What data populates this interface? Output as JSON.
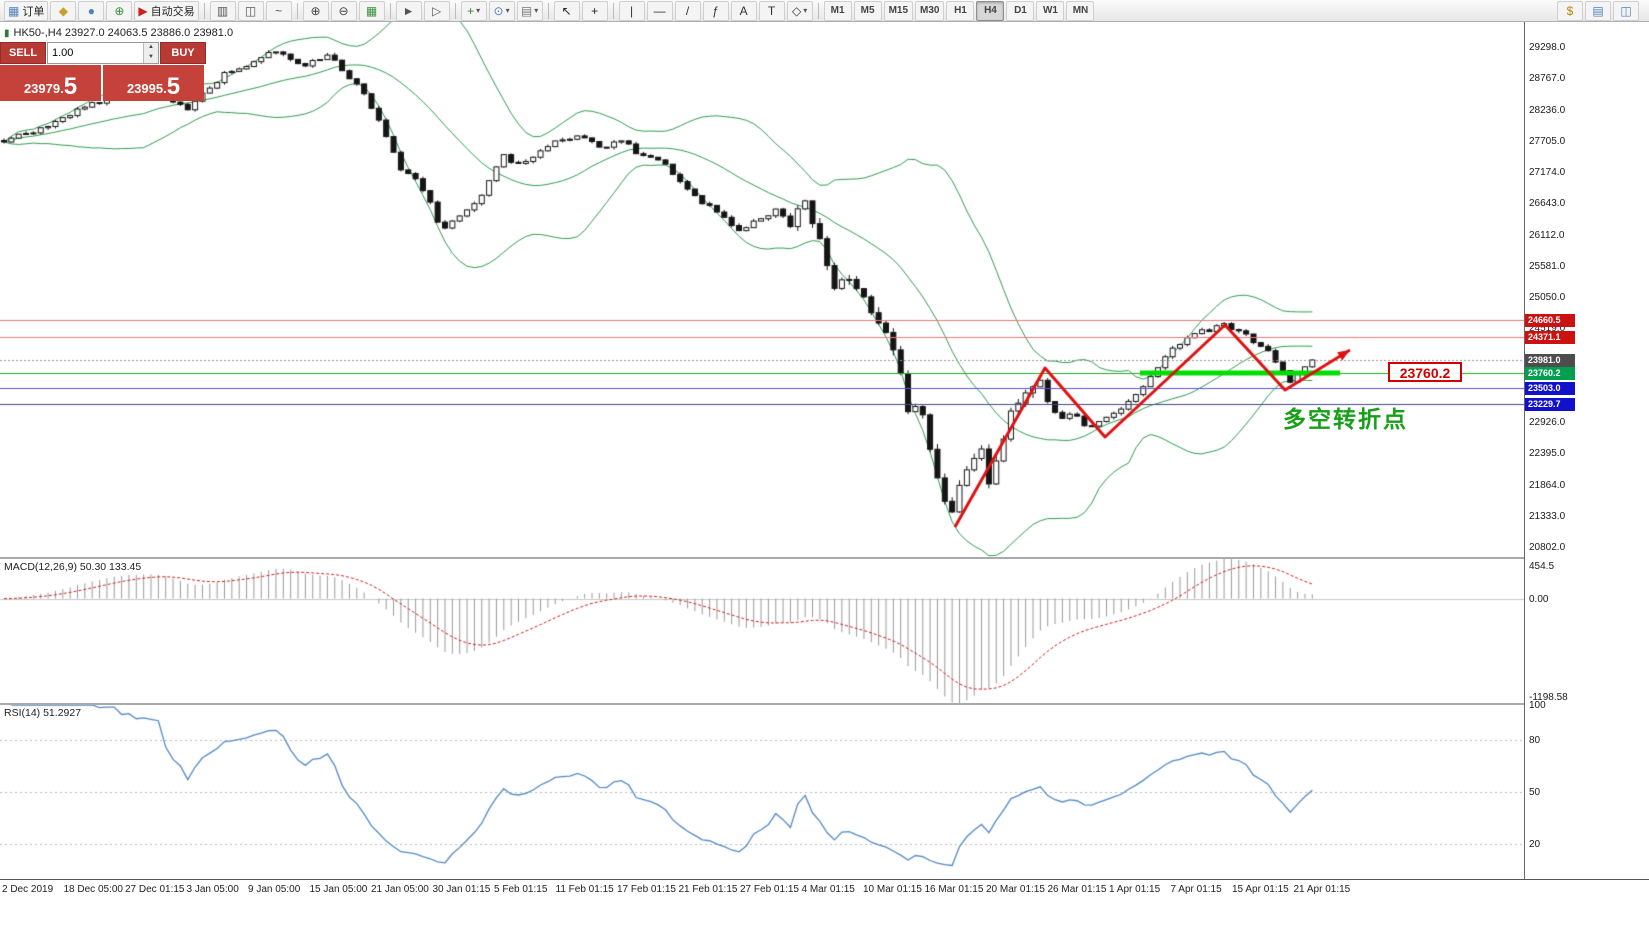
{
  "toolbar": {
    "groups": [
      {
        "items": [
          {
            "name": "new-order-button",
            "icon_name": "new-order-icon",
            "glyph": "▦",
            "glyph_color": "#4f81bd",
            "label": "订单"
          },
          {
            "name": "hammer-button",
            "icon_name": "hammer-icon",
            "glyph": "◆",
            "glyph_color": "#c8a028"
          },
          {
            "name": "profile-button",
            "icon_name": "profile-icon",
            "glyph": "●",
            "glyph_color": "#4f81bd"
          },
          {
            "name": "globe-button",
            "icon_name": "globe-icon",
            "glyph": "⊕",
            "glyph_color": "#3a8f3a"
          },
          {
            "name": "autotrading-button",
            "icon_name": "autotrading-play-icon",
            "glyph": "▶",
            "glyph_color": "#cc2222",
            "label": "自动交易"
          }
        ]
      },
      {
        "items": [
          {
            "name": "bar-chart-button",
            "icon_name": "bar-chart-icon",
            "glyph": "▥",
            "glyph_color": "#555555"
          },
          {
            "name": "candlestick-chart-button",
            "icon_name": "candlestick-chart-icon",
            "glyph": "◫",
            "glyph_color": "#555555"
          },
          {
            "name": "line-chart-button",
            "icon_name": "line-chart-icon",
            "glyph": "~",
            "glyph_color": "#555555"
          }
        ]
      },
      {
        "items": [
          {
            "name": "zoom-in-button",
            "icon_name": "zoom-in-icon",
            "glyph": "⊕",
            "glyph_color": "#444444"
          },
          {
            "name": "zoom-out-button",
            "icon_name": "zoom-out-icon",
            "glyph": "⊖",
            "glyph_color": "#444444"
          },
          {
            "name": "tile-windows-button",
            "icon_name": "tile-windows-icon",
            "glyph": "▦",
            "glyph_color": "#3a8f3a"
          }
        ]
      },
      {
        "items": [
          {
            "name": "autoscroll-button",
            "icon_name": "autoscroll-icon",
            "glyph": "►",
            "glyph_color": "#555555"
          },
          {
            "name": "chart-shift-button",
            "icon_name": "chart-shift-icon",
            "glyph": "▷",
            "glyph_color": "#555555"
          }
        ]
      },
      {
        "items": [
          {
            "name": "new-chart-button",
            "icon_name": "new-chart-icon",
            "glyph": "+",
            "glyph_color": "#2e8b2e",
            "dropdown": true
          },
          {
            "name": "period-button",
            "icon_name": "clock-icon",
            "glyph": "⊙",
            "glyph_color": "#4f81bd",
            "dropdown": true
          },
          {
            "name": "template-button",
            "icon_name": "template-icon",
            "glyph": "▤",
            "glyph_color": "#777777",
            "dropdown": true
          }
        ]
      },
      {
        "items": [
          {
            "name": "cursor-button",
            "icon_name": "cursor-icon",
            "glyph": "↖",
            "glyph_color": "#222222"
          },
          {
            "name": "crosshair-button",
            "icon_name": "crosshair-icon",
            "glyph": "+",
            "glyph_color": "#222222"
          }
        ]
      },
      {
        "items": [
          {
            "name": "vertical-line-button",
            "icon_name": "vertical-line-icon",
            "glyph": "|",
            "glyph_color": "#333333"
          },
          {
            "name": "horizontal-line-button",
            "icon_name": "horizontal-line-icon",
            "glyph": "—",
            "glyph_color": "#333333"
          },
          {
            "name": "trendline-button",
            "icon_name": "trendline-icon",
            "glyph": "/",
            "glyph_color": "#333333"
          },
          {
            "name": "fibonacci-button",
            "icon_name": "fibonacci-icon",
            "glyph": "ƒ",
            "glyph_color": "#333333"
          },
          {
            "name": "text-button",
            "icon_name": "text-icon",
            "glyph": "A",
            "glyph_color": "#333333"
          },
          {
            "name": "label-button",
            "icon_name": "label-icon",
            "glyph": "T",
            "glyph_color": "#333333"
          },
          {
            "name": "shapes-button",
            "icon_name": "shapes-icon",
            "glyph": "◇",
            "glyph_color": "#333333",
            "dropdown": true
          }
        ]
      }
    ],
    "timeframes": [
      {
        "label": "M1"
      },
      {
        "label": "M5"
      },
      {
        "label": "M15"
      },
      {
        "label": "M30"
      },
      {
        "label": "H1"
      },
      {
        "label": "H4",
        "active": true
      },
      {
        "label": "D1"
      },
      {
        "label": "W1"
      },
      {
        "label": "MN"
      }
    ],
    "right_items": [
      {
        "name": "symbol-search-button",
        "icon_name": "symbol-search-icon",
        "glyph": "$",
        "glyph_color": "#b8860b"
      },
      {
        "name": "market-watch-button",
        "icon_name": "market-watch-icon",
        "glyph": "▤",
        "glyph_color": "#4f81bd"
      },
      {
        "name": "window-layout-button",
        "icon_name": "window-layout-icon",
        "glyph": "◫",
        "glyph_color": "#4f81bd"
      }
    ]
  },
  "chart": {
    "symbol_line": "HK50-,H4  23927.0 24063.5 23886.0 23981.0"
  },
  "trade": {
    "sell_label": "SELL",
    "buy_label": "BUY",
    "volume": "1.00",
    "sell_price_head": "23979.",
    "sell_price_big": "5",
    "buy_price_head": "23995.",
    "buy_price_big": "5"
  },
  "macd": {
    "label": "MACD(12,26,9) 50.30 133.45",
    "scale_max_label": "454.5",
    "scale_zero_label": "0.00",
    "scale_min_label": "-1198.58"
  },
  "rsi": {
    "label": "RSI(14) 51.2927",
    "scale_labels": [
      {
        "label": "100",
        "level": 100
      },
      {
        "label": "80",
        "level": 80
      },
      {
        "label": "50",
        "level": 50
      },
      {
        "label": "20",
        "level": 20
      }
    ]
  },
  "chart_data": {
    "type": "candlestick",
    "symbol": "HK50-",
    "timeframe": "H4",
    "ohlc": {
      "open": 23927.0,
      "high": 24063.5,
      "low": 23886.0,
      "close": 23981.0
    },
    "bid": 23979.5,
    "ask": 23995.5,
    "price_axis": {
      "min": 20634,
      "max": 29724,
      "tick_labels": [
        29298.0,
        28767.0,
        28236.0,
        27705.0,
        27174.0,
        26643.0,
        26112.0,
        25581.0,
        25050.0,
        24519.0,
        22926.0,
        22395.0,
        21864.0,
        21333.0,
        20802.0
      ]
    },
    "n_candles": 179,
    "close_anchors": [
      [
        0,
        27720
      ],
      [
        0.03,
        27920
      ],
      [
        0.057,
        28230
      ],
      [
        0.084,
        28480
      ],
      [
        0.114,
        28560
      ],
      [
        0.141,
        28260
      ],
      [
        0.167,
        28820
      ],
      [
        0.194,
        29080
      ],
      [
        0.205,
        29280
      ],
      [
        0.228,
        28990
      ],
      [
        0.251,
        29160
      ],
      [
        0.262,
        28820
      ],
      [
        0.274,
        28560
      ],
      [
        0.285,
        28140
      ],
      [
        0.304,
        27210
      ],
      [
        0.319,
        26950
      ],
      [
        0.335,
        26190
      ],
      [
        0.35,
        26440
      ],
      [
        0.365,
        26780
      ],
      [
        0.38,
        27460
      ],
      [
        0.395,
        27290
      ],
      [
        0.411,
        27550
      ],
      [
        0.426,
        27720
      ],
      [
        0.441,
        27800
      ],
      [
        0.456,
        27550
      ],
      [
        0.471,
        27720
      ],
      [
        0.487,
        27460
      ],
      [
        0.502,
        27380
      ],
      [
        0.517,
        27040
      ],
      [
        0.532,
        26700
      ],
      [
        0.548,
        26440
      ],
      [
        0.563,
        26190
      ],
      [
        0.578,
        26360
      ],
      [
        0.589,
        26530
      ],
      [
        0.601,
        26280
      ],
      [
        0.612,
        26700
      ],
      [
        0.624,
        26020
      ],
      [
        0.635,
        25170
      ],
      [
        0.646,
        25420
      ],
      [
        0.658,
        25000
      ],
      [
        0.669,
        24660
      ],
      [
        0.681,
        24150
      ],
      [
        0.692,
        22960
      ],
      [
        0.7,
        23300
      ],
      [
        0.707,
        22620
      ],
      [
        0.715,
        21940
      ],
      [
        0.722,
        21260
      ],
      [
        0.73,
        21770
      ],
      [
        0.738,
        22110
      ],
      [
        0.745,
        22620
      ],
      [
        0.753,
        21770
      ],
      [
        0.76,
        22450
      ],
      [
        0.768,
        22960
      ],
      [
        0.776,
        23300
      ],
      [
        0.783,
        23470
      ],
      [
        0.791,
        23810
      ],
      [
        0.798,
        23300
      ],
      [
        0.806,
        22960
      ],
      [
        0.817,
        23130
      ],
      [
        0.829,
        22790
      ],
      [
        0.84,
        22960
      ],
      [
        0.852,
        23130
      ],
      [
        0.863,
        23300
      ],
      [
        0.875,
        23640
      ],
      [
        0.886,
        23980
      ],
      [
        0.897,
        24230
      ],
      [
        0.909,
        24400
      ],
      [
        0.92,
        24490
      ],
      [
        0.932,
        24570
      ],
      [
        0.943,
        24490
      ],
      [
        0.954,
        24320
      ],
      [
        0.966,
        24150
      ],
      [
        0.977,
        23810
      ],
      [
        0.985,
        23560
      ],
      [
        0.992,
        23810
      ],
      [
        0.996,
        23900
      ],
      [
        1,
        23981
      ]
    ],
    "indicators": {
      "bollinger": {
        "period": 20,
        "deviation": 2,
        "color": "#2e9b4e"
      },
      "macd": {
        "params": "12,26,9",
        "value": 50.3,
        "signal": 133.45,
        "scale": {
          "max": 454.5,
          "zero": 0.0,
          "min": -1198.58
        },
        "hist_color": "#9a9a9a",
        "signal_color": "#d02020"
      },
      "rsi": {
        "period": 14,
        "value": 51.2927,
        "levels": [
          80,
          50,
          20
        ],
        "color": "#5289c7"
      }
    },
    "levels": [
      {
        "price": 24660.5,
        "label": "24660.5",
        "line_color": "#e87a7a",
        "line_style": "solid",
        "tag_bg": "#cc1111"
      },
      {
        "price": 24371.1,
        "label": "24371.1",
        "line_color": "#e87a7a",
        "line_style": "solid",
        "tag_bg": "#cc1111"
      },
      {
        "price": 23981.0,
        "label": "23981.0",
        "line_color": "#999999",
        "line_style": "dotted",
        "tag_bg": "#4d4d4d"
      },
      {
        "price": 23760.2,
        "label": "23760.2",
        "line_color": "#22aa22",
        "line_style": "solid",
        "tag_bg": "#00a050"
      },
      {
        "price": 23503.0,
        "label": "23503.0",
        "line_color": "#5555dd",
        "line_style": "solid",
        "tag_bg": "#1111cc"
      },
      {
        "price": 23229.7,
        "label": "23229.7",
        "line_color": "#444488",
        "line_style": "solid",
        "tag_bg": "#1111cc"
      }
    ],
    "objects": {
      "zigzag": {
        "color": "#dd1111",
        "width": 3,
        "points": [
          [
            0.6266,
            21144
          ],
          [
            0.6857,
            23846
          ],
          [
            0.7251,
            22673
          ],
          [
            0.8038,
            24576
          ],
          [
            0.8432,
            23472
          ],
          [
            0.8858,
            24151
          ]
        ]
      },
      "green_segment": {
        "price": 23760.2,
        "x_from": 0.748,
        "x_to": 0.8793,
        "color": "#00dd00",
        "width": 5
      },
      "price_label": {
        "text": "23760.2"
      },
      "annotation": {
        "text": "多空转折点",
        "color": "#17a017"
      }
    },
    "time_labels": [
      "2 Dec 2019",
      "18 Dec 05:00",
      "27 Dec 01:15",
      "3 Jan 05:00",
      "9 Jan 05:00",
      "15 Jan 05:00",
      "21 Jan 05:00",
      "30 Jan 01:15",
      "5 Feb 01:15",
      "11 Feb 01:15",
      "17 Feb 01:15",
      "21 Feb 01:15",
      "27 Feb 01:15",
      "4 Mar 01:15",
      "10 Mar 01:15",
      "16 Mar 01:15",
      "20 Mar 01:15",
      "26 Mar 01:15",
      "1 Apr 01:15",
      "7 Apr 01:15",
      "15 Apr 01:15",
      "21 Apr 01:15"
    ]
  }
}
